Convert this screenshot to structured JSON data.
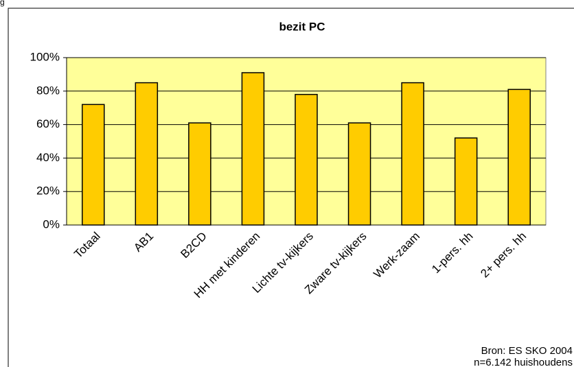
{
  "chart_data": {
    "type": "bar",
    "title": "bezit PC",
    "corner_text": "g",
    "categories": [
      "Totaal",
      "AB1",
      "B2CD",
      "HH met kinderen",
      "Lichte tv-kijkers",
      "Zware tv-kijkers",
      "Werk-zaam",
      "1-pers. hh",
      "2+ pers. hh"
    ],
    "values": [
      72,
      85,
      61,
      91,
      78,
      61,
      85,
      52,
      81
    ],
    "color": "#ffcc00",
    "plot_background": "#ffff99",
    "ylim": [
      0,
      100
    ],
    "yticks": [
      {
        "value": 0,
        "label": "0%"
      },
      {
        "value": 20,
        "label": "20%"
      },
      {
        "value": 40,
        "label": "40%"
      },
      {
        "value": 60,
        "label": "60%"
      },
      {
        "value": 80,
        "label": "80%"
      },
      {
        "value": 100,
        "label": "100%"
      }
    ],
    "grid": true,
    "annotations": [
      "Bron: ES SKO 2004",
      "n=6.142 huishoudens"
    ]
  }
}
